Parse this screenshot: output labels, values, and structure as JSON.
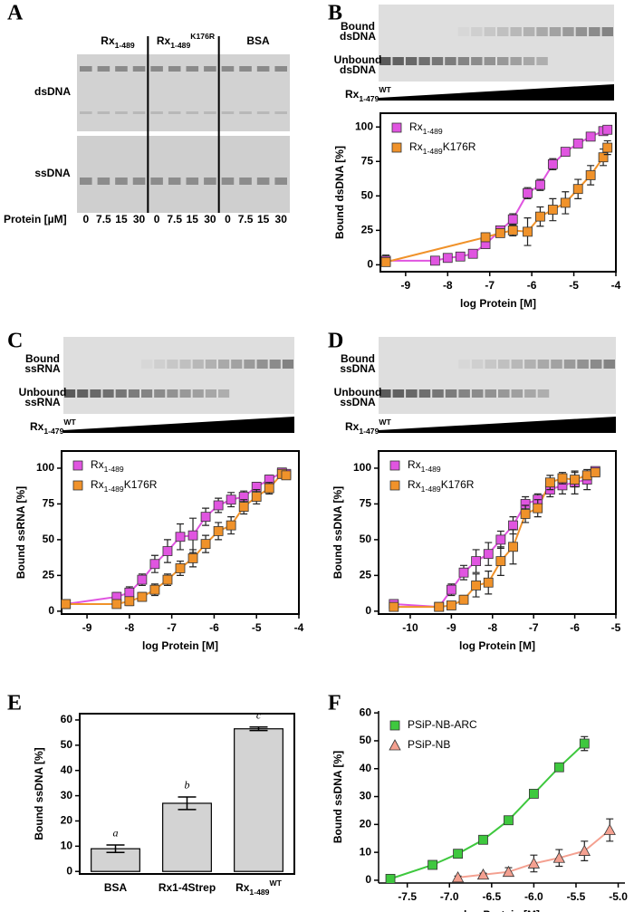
{
  "panel_letters": [
    "A",
    "B",
    "C",
    "D",
    "E",
    "F"
  ],
  "gels": [
    {
      "headers": [
        {
          "text": "Rx",
          "sub": "1-489"
        },
        {
          "text": "Rx",
          "sub": "1-489",
          "sup": "K176R"
        },
        {
          "text": "BSA"
        }
      ],
      "rows": [
        "dsDNA",
        "ssDNA"
      ],
      "lane_title": "Protein [µM]",
      "lanes": [
        0,
        7.5,
        15,
        30
      ]
    },
    {
      "bound": [
        "Bound",
        "dsDNA"
      ],
      "unbound": [
        "Unbound",
        "dsDNA"
      ],
      "titrant": {
        "text": "Rx",
        "sub": "1-479",
        "sup": "WT"
      }
    },
    {
      "bound": [
        "Bound",
        "ssRNA"
      ],
      "unbound": [
        "Unbound",
        "ssRNA"
      ],
      "titrant": {
        "text": "Rx",
        "sub": "1-479",
        "sup": "WT"
      }
    },
    {
      "bound": [
        "Bound",
        "ssDNA"
      ],
      "unbound": [
        "Unbound",
        "ssDNA"
      ],
      "titrant": {
        "text": "Rx",
        "sub": "1-479",
        "sup": "WT"
      }
    }
  ],
  "chart_data": [
    {
      "type": "scatter",
      "xlabel": "log Protein [M]",
      "ylabel": "Bound dsDNA [%]",
      "frame": "box",
      "legend": "upper left",
      "xlim": [
        -9.6,
        -4
      ],
      "ylim": [
        -5,
        110
      ],
      "xticks": [
        -9,
        -8,
        -7,
        -6,
        -5,
        -4
      ],
      "yticks": [
        0,
        25,
        50,
        75,
        100
      ],
      "series": [
        {
          "name": {
            "text": "Rx",
            "sub": "1-489"
          },
          "color": "#e055e0",
          "marker": "square",
          "x": [
            -9.47,
            -8.3,
            -8.0,
            -7.7,
            -7.4,
            -7.1,
            -6.75,
            -6.45,
            -6.1,
            -5.8,
            -5.5,
            -5.2,
            -4.9,
            -4.6,
            -4.3,
            -4.2
          ],
          "values": [
            3,
            3,
            5,
            6,
            8,
            15,
            25,
            33,
            52,
            58,
            73,
            82,
            88,
            93,
            97,
            98
          ],
          "errors": [
            4,
            1,
            1,
            1,
            2,
            2,
            3,
            4,
            4,
            4,
            4,
            3,
            2,
            2,
            2,
            1
          ]
        },
        {
          "name": {
            "text": "Rx",
            "sub": "1-489",
            "after": "K176R"
          },
          "color": "#f0922a",
          "marker": "square",
          "x": [
            -9.47,
            -7.1,
            -6.75,
            -6.45,
            -6.1,
            -5.8,
            -5.5,
            -5.2,
            -4.9,
            -4.6,
            -4.3,
            -4.2
          ],
          "values": [
            2,
            20,
            23,
            25,
            24,
            35,
            40,
            45,
            55,
            65,
            78,
            85
          ],
          "errors": [
            2,
            3,
            3,
            4,
            10,
            7,
            8,
            8,
            7,
            7,
            6,
            5
          ]
        }
      ]
    },
    {
      "type": "scatter",
      "xlabel": "log Protein [M]",
      "ylabel": "Bound ssRNA [%]",
      "frame": "box",
      "legend": "upper left",
      "xlim": [
        -9.6,
        -4
      ],
      "ylim": [
        -2,
        112
      ],
      "xticks": [
        -9,
        -8,
        -7,
        -6,
        -5,
        -4
      ],
      "yticks": [
        0,
        25,
        50,
        75,
        100
      ],
      "series": [
        {
          "name": {
            "text": "Rx",
            "sub": "1-489"
          },
          "color": "#e055e0",
          "marker": "square",
          "x": [
            -9.5,
            -8.3,
            -8.0,
            -7.7,
            -7.4,
            -7.1,
            -6.8,
            -6.5,
            -6.2,
            -5.9,
            -5.6,
            -5.3,
            -5.0,
            -4.7,
            -4.4,
            -4.3
          ],
          "values": [
            5,
            10,
            13,
            22,
            33,
            42,
            52,
            53,
            66,
            74,
            78,
            80,
            87,
            92,
            97,
            96
          ],
          "errors": [
            3,
            3,
            4,
            4,
            6,
            8,
            9,
            12,
            6,
            5,
            5,
            4,
            3,
            3,
            2,
            2
          ]
        },
        {
          "name": {
            "text": "Rx",
            "sub": "1-489",
            "after": "K176R"
          },
          "color": "#f0922a",
          "marker": "square",
          "x": [
            -9.5,
            -8.3,
            -8.0,
            -7.7,
            -7.4,
            -7.1,
            -6.8,
            -6.5,
            -6.2,
            -5.9,
            -5.6,
            -5.3,
            -5.0,
            -4.7,
            -4.4,
            -4.3
          ],
          "values": [
            5,
            5,
            7,
            10,
            15,
            22,
            30,
            37,
            47,
            56,
            60,
            73,
            80,
            86,
            96,
            95
          ],
          "errors": [
            2,
            2,
            3,
            3,
            4,
            4,
            5,
            6,
            6,
            6,
            6,
            5,
            5,
            4,
            3,
            2
          ]
        }
      ]
    },
    {
      "type": "scatter",
      "xlabel": "log Protein [M]",
      "ylabel": "Bound ssDNA [%]",
      "frame": "box",
      "legend": "upper left",
      "xlim": [
        -10.77,
        -5
      ],
      "ylim": [
        -2,
        112
      ],
      "xticks": [
        -10,
        -9,
        -8,
        -7,
        -6,
        -5
      ],
      "yticks": [
        0,
        25,
        50,
        75,
        100
      ],
      "series": [
        {
          "name": {
            "text": "Rx",
            "sub": "1-489"
          },
          "color": "#e055e0",
          "marker": "square",
          "x": [
            -10.4,
            -9.3,
            -9.0,
            -8.7,
            -8.4,
            -8.1,
            -7.8,
            -7.5,
            -7.2,
            -6.9,
            -6.6,
            -6.3,
            -6.0,
            -5.7,
            -5.5
          ],
          "values": [
            5,
            3,
            15,
            27,
            35,
            40,
            50,
            60,
            75,
            78,
            85,
            88,
            90,
            92,
            98
          ],
          "errors": [
            3,
            2,
            4,
            5,
            8,
            8,
            6,
            6,
            5,
            4,
            5,
            6,
            8,
            7,
            2
          ]
        },
        {
          "name": {
            "text": "Rx",
            "sub": "1-489",
            "after": "K176R"
          },
          "color": "#f0922a",
          "marker": "square",
          "x": [
            -10.4,
            -9.3,
            -9.0,
            -8.7,
            -8.4,
            -8.1,
            -7.8,
            -7.5,
            -7.2,
            -6.9,
            -6.6,
            -6.3,
            -6.0,
            -5.7,
            -5.5
          ],
          "values": [
            3,
            3,
            4,
            8,
            18,
            20,
            35,
            45,
            68,
            72,
            90,
            93,
            92,
            95,
            97
          ],
          "errors": [
            2,
            2,
            2,
            3,
            8,
            8,
            10,
            12,
            6,
            6,
            5,
            4,
            5,
            3,
            2
          ]
        }
      ]
    },
    {
      "type": "bar",
      "ylabel": "Bound ssDNA [%]",
      "frame": "box",
      "color": "#d3d3d3",
      "categories": [
        "BSA",
        "Rx1-4Strep",
        {
          "text": "Rx",
          "sub": "1-489",
          "sup": "WT"
        }
      ],
      "values": [
        9,
        27,
        56.5
      ],
      "errors": [
        1.5,
        2.5,
        0.7
      ],
      "annotations": [
        "a",
        "b",
        "c"
      ],
      "ylim": [
        -1,
        62.5
      ],
      "yticks": [
        0,
        10,
        20,
        30,
        40,
        50,
        60
      ]
    },
    {
      "type": "scatter",
      "xlabel": "log Protein [M]",
      "ylabel": "Bound ssDNA [%]",
      "frame": "axes",
      "legend": "upper left",
      "xlim": [
        -7.84,
        -4.92
      ],
      "ylim": [
        -1,
        60.7
      ],
      "xticks": [
        -7.5,
        {
          "value": -7,
          "label": "-7.0"
        },
        -6.5,
        {
          "value": -6,
          "label": "-6.0"
        },
        -5.5,
        {
          "value": -5,
          "label": "-5.0"
        }
      ],
      "yticks": [
        0,
        10,
        20,
        30,
        40,
        50,
        60
      ],
      "series": [
        {
          "name": "PSiP-NB-ARC",
          "color": "#3ec83e",
          "marker": "square",
          "x": [
            -7.7,
            -7.2,
            -6.9,
            -6.6,
            -6.3,
            -6.0,
            -5.7,
            -5.4
          ],
          "values": [
            0.5,
            5.5,
            9.5,
            14.5,
            21.5,
            31,
            40.5,
            49
          ],
          "errors": [
            0.5,
            0.5,
            0.5,
            0.5,
            0.5,
            0.5,
            0.5,
            2.5
          ]
        },
        {
          "name": "PSiP-NB",
          "color": "#f4a090",
          "marker": "triangle",
          "x": [
            -6.9,
            -6.6,
            -6.3,
            -6.0,
            -5.7,
            -5.4,
            -5.1
          ],
          "values": [
            1,
            2,
            3,
            6,
            8,
            10.5,
            18
          ],
          "errors": [
            0.5,
            0.5,
            1.5,
            3,
            3,
            3.5,
            4
          ]
        }
      ]
    }
  ]
}
